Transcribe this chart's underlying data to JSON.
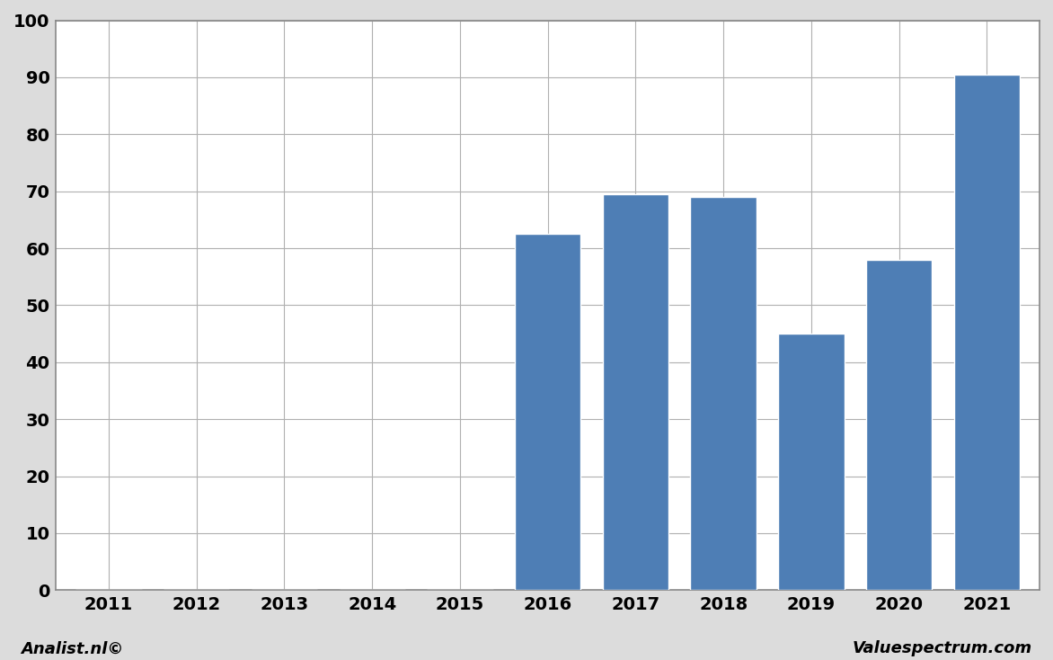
{
  "categories": [
    "2011",
    "2012",
    "2013",
    "2014",
    "2015",
    "2016",
    "2017",
    "2018",
    "2019",
    "2020",
    "2021"
  ],
  "values": [
    0,
    0,
    0,
    0,
    0,
    62.5,
    69.5,
    69.0,
    45.0,
    58.0,
    90.5
  ],
  "bar_color": "#4e7eb5",
  "plot_background_color": "#ffffff",
  "figure_background_color": "#dcdcdc",
  "grid_color": "#b0b0b0",
  "ylim": [
    0,
    100
  ],
  "yticks": [
    0,
    10,
    20,
    30,
    40,
    50,
    60,
    70,
    80,
    90,
    100
  ],
  "tick_fontsize": 14,
  "footer_left": "Analist.nl©",
  "footer_right": "Valuespectrum.com",
  "footer_fontsize": 13,
  "bar_width": 0.75
}
